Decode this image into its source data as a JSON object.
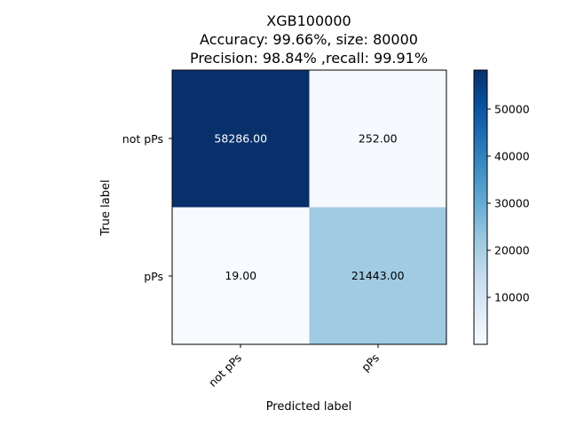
{
  "chart_data": {
    "type": "heatmap",
    "title_lines": [
      "XGB100000",
      "Accuracy: 99.66%, size: 80000",
      "Precision: 98.84% ,recall: 99.91%"
    ],
    "xlabel": "Predicted label",
    "ylabel": "True label",
    "x_categories": [
      "not pPs",
      "pPs"
    ],
    "y_categories": [
      "not pPs",
      "pPs"
    ],
    "matrix": [
      [
        58286.0,
        252.0
      ],
      [
        19.0,
        21443.0
      ]
    ],
    "cell_labels": [
      [
        "58286.00",
        "252.00"
      ],
      [
        "19.00",
        "21443.00"
      ]
    ],
    "colormap": "Blues",
    "color_range": [
      19,
      58286
    ],
    "colorbar_ticks": [
      {
        "value": 10000,
        "label": "10000"
      },
      {
        "value": 20000,
        "label": "20000"
      },
      {
        "value": 30000,
        "label": "30000"
      },
      {
        "value": 40000,
        "label": "40000"
      },
      {
        "value": 50000,
        "label": "50000"
      }
    ],
    "colors": {
      "dark": "#08306b",
      "light": "#f7fbff",
      "text_dark": "#000000",
      "text_light": "#ffffff"
    }
  }
}
